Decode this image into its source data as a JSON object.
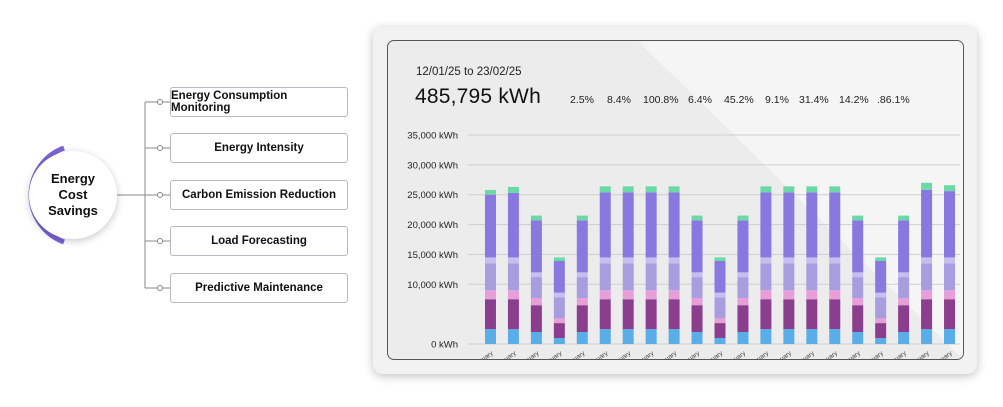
{
  "hub": {
    "label": "Energy Cost Savings"
  },
  "features": [
    {
      "label": "Energy Consumption Monitoring"
    },
    {
      "label": "Energy Intensity"
    },
    {
      "label": "Carbon Emission Reduction"
    },
    {
      "label": "Load Forecasting"
    },
    {
      "label": "Predictive Maintenance"
    }
  ],
  "panel": {
    "date_range": "12/01/25 to 23/02/25",
    "total": "485,795 kWh",
    "percentages": [
      "2.5%",
      "8.4%",
      "100.8%",
      "6.4%",
      "45.2%",
      "9.1%",
      "31.4%",
      "14.2%",
      ".86.1%"
    ]
  },
  "colors": {
    "accent_ring": "#7b63d6",
    "series": [
      "#5aaee8",
      "#8b3e8e",
      "#e79fda",
      "#a79ddf",
      "#c4bff0",
      "#8878e0",
      "#6cd8a6"
    ]
  },
  "chart_data": {
    "type": "bar",
    "stacked": true,
    "title": "",
    "xlabel": "",
    "ylabel": "",
    "ylim": [
      0,
      35000
    ],
    "yticks": [
      "0 kWh",
      "10,000 kWh",
      "15,000 kWh",
      "20,000 kWh",
      "25,000 kWh",
      "30,000 kWh",
      "35,000 kWh"
    ],
    "ytick_values": [
      0,
      10000,
      15000,
      20000,
      25000,
      30000,
      35000
    ],
    "grid": true,
    "categories": [
      "January",
      "January",
      "January",
      "January",
      "January",
      "January",
      "January",
      "January",
      "January",
      "January",
      "January",
      "January",
      "January",
      "January",
      "January",
      "January",
      "January",
      "January",
      "January",
      "January",
      "January"
    ],
    "series": [
      {
        "values": [
          2500,
          2500,
          2000,
          1000,
          2000,
          2500,
          2500,
          2500,
          2500,
          2000,
          1000,
          2000,
          2500,
          2500,
          2500,
          2500,
          2000,
          1000,
          2000,
          2500,
          2500
        ]
      },
      {
        "values": [
          5000,
          5000,
          4500,
          2500,
          4500,
          5000,
          5000,
          5000,
          5000,
          4500,
          2500,
          4500,
          5000,
          5000,
          5000,
          5000,
          4500,
          2500,
          4500,
          5000,
          5000
        ]
      },
      {
        "values": [
          1500,
          1500,
          1200,
          800,
          1200,
          1500,
          1500,
          1500,
          1500,
          1200,
          800,
          1200,
          1500,
          1500,
          1500,
          1500,
          1200,
          800,
          1200,
          1500,
          1500
        ]
      },
      {
        "values": [
          4500,
          4500,
          3500,
          3500,
          3500,
          4500,
          4500,
          4500,
          4500,
          3500,
          3500,
          3500,
          4500,
          4500,
          4500,
          4500,
          3500,
          3500,
          3500,
          4500,
          4500
        ]
      },
      {
        "values": [
          1000,
          1000,
          800,
          800,
          800,
          1000,
          1000,
          1000,
          1000,
          800,
          800,
          800,
          1000,
          1000,
          1000,
          1000,
          800,
          800,
          800,
          1000,
          1000
        ]
      },
      {
        "values": [
          10500,
          10800,
          8700,
          5300,
          8700,
          10900,
          10900,
          10900,
          10900,
          8700,
          5300,
          8700,
          10900,
          10900,
          10900,
          10900,
          8700,
          5300,
          8700,
          11300,
          11100
        ]
      },
      {
        "values": [
          800,
          1000,
          800,
          600,
          800,
          1000,
          1000,
          1000,
          1000,
          800,
          600,
          800,
          1000,
          1000,
          1000,
          1000,
          800,
          600,
          800,
          1200,
          1000
        ]
      }
    ]
  }
}
